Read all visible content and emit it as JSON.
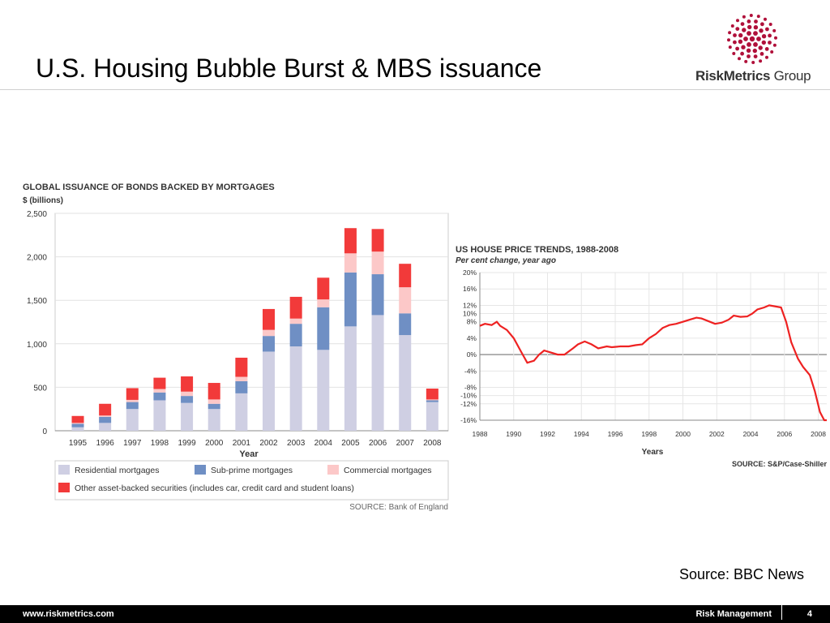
{
  "slide": {
    "title": "U.S. Housing Bubble Burst & MBS issuance",
    "source_note": "Source: BBC News"
  },
  "logo": {
    "brand": "RiskMetrics",
    "group": "Group",
    "accent": "#b0103a"
  },
  "footer": {
    "url": "www.riskmetrics.com",
    "dept": "Risk Management",
    "page": "4"
  },
  "chart_data": [
    {
      "type": "bar",
      "stacked": true,
      "title": "GLOBAL ISSUANCE OF BONDS BACKED BY MORTGAGES",
      "subtitle": "$ (billions)",
      "xlabel": "Year",
      "ylabel": "",
      "ylim": [
        0,
        2500
      ],
      "yticks": [
        "0",
        "500",
        "1,000",
        "1,500",
        "2,000",
        "2,500"
      ],
      "ytick_values": [
        0,
        500,
        1000,
        1500,
        2000,
        2500
      ],
      "grid": true,
      "legend_position": "bottom",
      "source": "SOURCE: Bank of England",
      "categories": [
        "1995",
        "1996",
        "1997",
        "1998",
        "1999",
        "2000",
        "2001",
        "2002",
        "2003",
        "2004",
        "2005",
        "2006",
        "2007",
        "2008"
      ],
      "series": [
        {
          "name": "Residential mortgages",
          "color": "#cfcfe3",
          "values": [
            40,
            90,
            250,
            350,
            320,
            250,
            430,
            910,
            970,
            930,
            1200,
            1330,
            1100,
            330
          ]
        },
        {
          "name": "Sub-prime mortgages",
          "color": "#6f8fc4",
          "values": [
            40,
            70,
            80,
            90,
            80,
            60,
            140,
            180,
            260,
            490,
            620,
            470,
            250,
            20
          ]
        },
        {
          "name": "Commercial mortgages",
          "color": "#fcc8c8",
          "values": [
            10,
            15,
            25,
            40,
            50,
            50,
            50,
            70,
            60,
            90,
            220,
            260,
            300,
            10
          ]
        },
        {
          "name": "Other asset-backed securities (includes car, credit card and student loans)",
          "color": "#f23a3a",
          "values": [
            80,
            135,
            135,
            130,
            175,
            190,
            220,
            240,
            250,
            250,
            290,
            260,
            270,
            125
          ]
        }
      ]
    },
    {
      "type": "line",
      "title": "US HOUSE PRICE TRENDS, 1988-2008",
      "subtitle": "Per cent change, year ago",
      "xlabel": "Years",
      "ylabel": "",
      "xlim": [
        1988,
        2008.5
      ],
      "ylim": [
        -16,
        20
      ],
      "xticks": [
        "1988",
        "1990",
        "1992",
        "1994",
        "1996",
        "1998",
        "2000",
        "2002",
        "2004",
        "2006",
        "2008"
      ],
      "xtick_values": [
        1988,
        1990,
        1992,
        1994,
        1996,
        1998,
        2000,
        2002,
        2004,
        2006,
        2008
      ],
      "yticks": [
        "20%",
        "16%",
        "12%",
        "10%",
        "8%",
        "4%",
        "0%",
        "-4%",
        "-8%",
        "-10%",
        "-12%",
        "-16%"
      ],
      "ytick_values": [
        20,
        16,
        12,
        10,
        8,
        4,
        0,
        -4,
        -8,
        -10,
        -12,
        -16
      ],
      "grid": true,
      "source": "SOURCE: S&P/Case-Shiller",
      "color": "#ee2222",
      "series": [
        {
          "x": [
            1988,
            1988.3,
            1988.7,
            1989,
            1989.2,
            1989.6,
            1990,
            1990.4,
            1990.8,
            1991.2,
            1991.5,
            1991.8,
            1992.2,
            1992.6,
            1993,
            1993.5,
            1993.8,
            1994.2,
            1994.6,
            1995,
            1995.5,
            1995.8,
            1996.3,
            1996.8,
            1997.2,
            1997.6,
            1998,
            1998.4,
            1998.8,
            1999.2,
            1999.6,
            2000,
            2000.4,
            2000.8,
            2001.1,
            2001.6,
            2001.9,
            2002.3,
            2002.7,
            2003,
            2003.4,
            2003.8,
            2004.1,
            2004.4,
            2004.8,
            2005.1,
            2005.4,
            2005.8,
            2006.1,
            2006.4,
            2006.8,
            2007.1,
            2007.5,
            2007.8,
            2008.1,
            2008.35,
            2008.5
          ],
          "y": [
            7,
            7.5,
            7.2,
            8,
            7,
            6,
            4,
            1,
            -2,
            -1.5,
            0,
            1,
            0.5,
            0,
            0,
            1.5,
            2.5,
            3.2,
            2.5,
            1.5,
            2,
            1.8,
            2,
            2,
            2.3,
            2.5,
            4,
            5,
            6.5,
            7.2,
            7.5,
            8,
            8.5,
            9,
            8.8,
            8,
            7.5,
            7.8,
            8.5,
            9.5,
            9.2,
            9.3,
            10,
            11,
            11.5,
            12,
            11.8,
            11.5,
            8,
            3,
            -1,
            -3,
            -5,
            -9,
            -14,
            -16,
            -16
          ]
        }
      ]
    }
  ]
}
